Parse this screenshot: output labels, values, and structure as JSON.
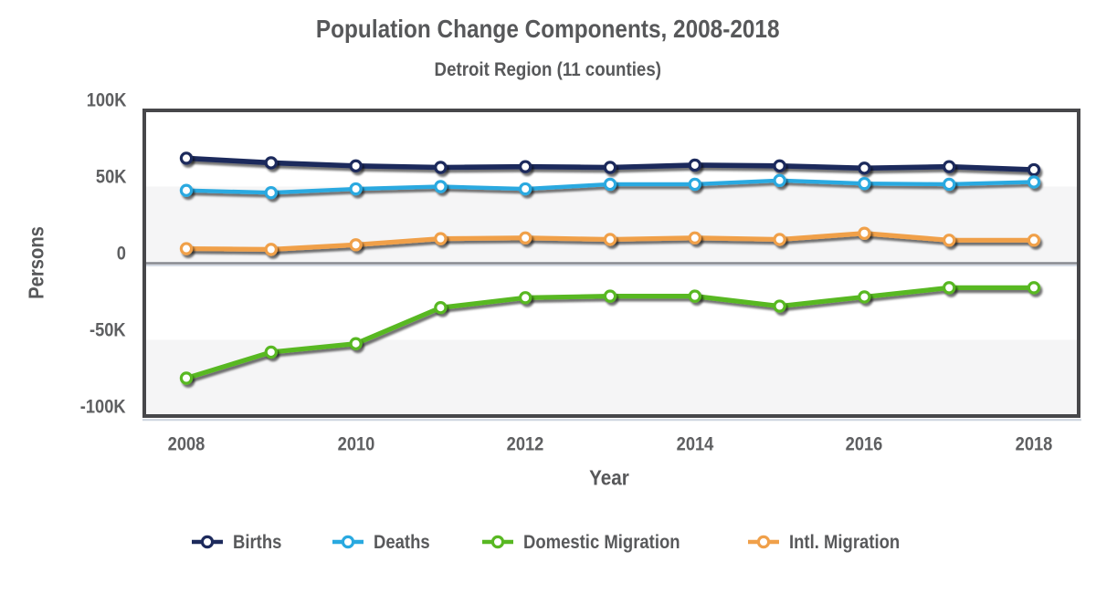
{
  "title": "Population Change Components, 2008-2018",
  "subtitle": "Detroit Region (11 counties)",
  "axes": {
    "xlabel": "Year",
    "ylabel": "Persons",
    "y_ticks": [
      {
        "value": 100000,
        "label": "100K"
      },
      {
        "value": 50000,
        "label": "50K"
      },
      {
        "value": 0,
        "label": "0"
      },
      {
        "value": -50000,
        "label": "-50K"
      },
      {
        "value": -100000,
        "label": "-100K"
      }
    ],
    "x_ticks": [
      2008,
      2010,
      2012,
      2014,
      2016,
      2018
    ]
  },
  "chart_data": {
    "type": "line",
    "title": "Population Change Components, 2008-2018",
    "subtitle": "Detroit Region (11 counties)",
    "xlabel": "Year",
    "ylabel": "Persons",
    "ylim": [
      -100000,
      100000
    ],
    "grid": "horizontal-bands",
    "legend_position": "bottom",
    "x": [
      2008,
      2009,
      2010,
      2011,
      2012,
      2013,
      2014,
      2015,
      2016,
      2017,
      2018
    ],
    "series": [
      {
        "name": "Births",
        "color": "#1d2a5c",
        "values": [
          68500,
          65500,
          63500,
          62500,
          63000,
          62500,
          64000,
          63500,
          62000,
          63000,
          61000
        ]
      },
      {
        "name": "Deaths",
        "color": "#29a9e0",
        "values": [
          47500,
          46000,
          48500,
          50000,
          48500,
          51500,
          51500,
          54000,
          52000,
          51500,
          53000
        ]
      },
      {
        "name": "Domestic Migration",
        "color": "#58b822",
        "values": [
          -75000,
          -58000,
          -52500,
          -29000,
          -22500,
          -21500,
          -21500,
          -28000,
          -22000,
          -16000,
          -16000
        ]
      },
      {
        "name": "Intl. Migration",
        "color": "#f0a04a",
        "values": [
          9500,
          9000,
          12000,
          16000,
          16500,
          15500,
          16500,
          15500,
          19500,
          15000,
          15000
        ]
      }
    ]
  },
  "style": {
    "series_colors": [
      "#1d2a5c",
      "#29a9e0",
      "#58b822",
      "#f0a04a"
    ],
    "text_color": "#57585a",
    "band_color": "#f5f5f6",
    "frame_color": "#47474a"
  }
}
